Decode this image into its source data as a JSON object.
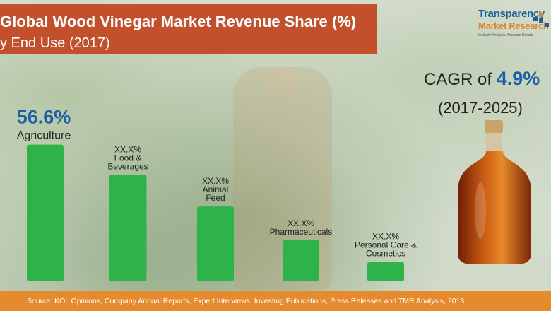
{
  "header": {
    "title": "Global Wood Vinegar Market Revenue Share (%)",
    "subtitle": "y End Use (2017)"
  },
  "logo": {
    "name": "Transparency",
    "name2": "Market Research",
    "tagline": "In-depth Analysis. Accurate Results"
  },
  "cagr": {
    "label": "CAGR of ",
    "value": "4.9%",
    "period": "(2017-2025)"
  },
  "source": "Source: KOL Opinions, Company Annual Reports, Expert Interviews, Investing Publications, Press Releases and TMR Analysis, 2018",
  "colors": {
    "bar": "#2db34a",
    "title_bg": "#c2502d",
    "source_bg": "#e58a2d",
    "highlight": "#1d5fa4"
  },
  "chart_data": {
    "type": "bar",
    "title": "Global Wood Vinegar Market Revenue Share (%)",
    "categories": [
      "Agriculture",
      "Food & Beverages",
      "Animal Feed",
      "Pharmaceuticals",
      "Personal Care & Cosmetics"
    ],
    "category_lines": [
      [
        "Agriculture"
      ],
      [
        "Food &",
        "Beverages"
      ],
      [
        "Animal",
        "Feed"
      ],
      [
        "Pharmaceuticals"
      ],
      [
        "Personal Care &",
        "Cosmetics"
      ]
    ],
    "value_labels": [
      "56.6%",
      "XX.X%",
      "XX.X%",
      "XX.X%",
      "XX.X%"
    ],
    "values": [
      56.6,
      44.0,
      31.0,
      17.0,
      8.0
    ],
    "ylim": [
      0,
      60
    ],
    "grid": false,
    "legend": "none"
  }
}
